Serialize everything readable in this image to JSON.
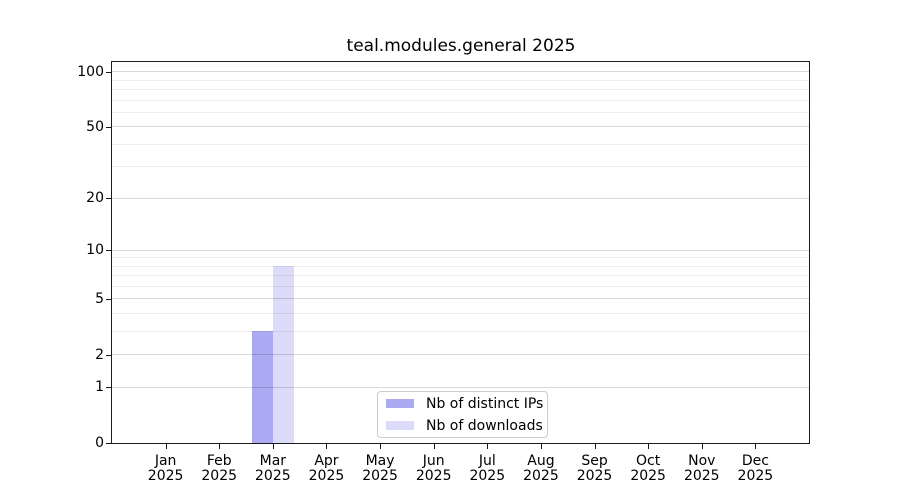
{
  "chart_data": {
    "type": "bar",
    "title": "teal.modules.general 2025",
    "categories": [
      "Jan",
      "Feb",
      "Mar",
      "Apr",
      "May",
      "Jun",
      "Jul",
      "Aug",
      "Sep",
      "Oct",
      "Nov",
      "Dec"
    ],
    "category_year": "2025",
    "series": [
      {
        "name": "Nb of distinct IPs",
        "color": "#aaa9f2",
        "values": [
          0,
          0,
          3,
          0,
          0,
          0,
          0,
          0,
          0,
          0,
          0,
          0
        ]
      },
      {
        "name": "Nb of downloads",
        "color": "#dcdbf9",
        "values": [
          0,
          0,
          8,
          0,
          0,
          0,
          0,
          0,
          0,
          0,
          0,
          0
        ]
      }
    ],
    "yscale": "log1p",
    "ylim": [
      0,
      113
    ],
    "yticks": [
      0,
      1,
      2,
      5,
      10,
      20,
      50,
      100
    ],
    "yticks_minor": [
      3,
      4,
      6,
      7,
      8,
      9,
      30,
      40,
      60,
      70,
      80,
      90
    ],
    "grid": "horizontal",
    "legend_position": "lower center",
    "xlabel": "",
    "ylabel": ""
  }
}
